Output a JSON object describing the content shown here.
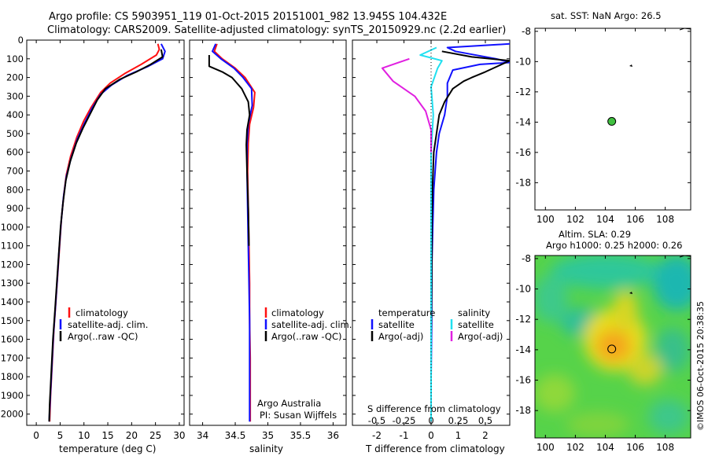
{
  "header": {
    "title_line1": "Argo profile: CS 5903951_119 01-Oct-2015 20151001_982 13.945S 104.432E",
    "title_line2": "Climatology: CARS2009. Satellite-adjusted climatology: synTS_20150929.nc (2.2d earlier)"
  },
  "colors": {
    "climatology": "#ff1010",
    "satellite": "#1010ff",
    "argo": "#000000",
    "satellite_diff": "#20e0f0",
    "argo_adj_diff": "#e020e0",
    "map_dot": "#40c040"
  },
  "chart_data": [
    {
      "type": "line",
      "name": "temperature",
      "xlabel": "temperature (deg C)",
      "ylabel": "",
      "xlim": [
        -2,
        31
      ],
      "ylim": [
        2060,
        0
      ],
      "xticks": [
        "0",
        "5",
        "10",
        "15",
        "20",
        "25",
        "30"
      ],
      "xtick_values": [
        0,
        5,
        10,
        15,
        20,
        25,
        30
      ],
      "yticks": [
        "0",
        "100",
        "200",
        "300",
        "400",
        "500",
        "600",
        "700",
        "800",
        "900",
        "1000",
        "1100",
        "1200",
        "1300",
        "1400",
        "1500",
        "1600",
        "1700",
        "1800",
        "1900",
        "2000"
      ],
      "ytick_values": [
        0,
        100,
        200,
        300,
        400,
        500,
        600,
        700,
        800,
        900,
        1000,
        1100,
        1200,
        1300,
        1400,
        1500,
        1600,
        1700,
        1800,
        1900,
        2000
      ],
      "legend": [
        "climatology",
        "satellite-adj. clim.",
        "Argo(..raw -QC)"
      ],
      "series": [
        {
          "name": "climatology",
          "color": "red",
          "points": [
            [
              25.5,
              20
            ],
            [
              25.8,
              50
            ],
            [
              25.2,
              80
            ],
            [
              22,
              130
            ],
            [
              18.5,
              180
            ],
            [
              15.5,
              230
            ],
            [
              13.5,
              280
            ],
            [
              11.5,
              360
            ],
            [
              10,
              430
            ],
            [
              8.5,
              520
            ],
            [
              7.2,
              620
            ],
            [
              6.3,
              720
            ],
            [
              5.8,
              820
            ],
            [
              5.3,
              950
            ],
            [
              4.9,
              1100
            ],
            [
              4.5,
              1250
            ],
            [
              4.1,
              1400
            ],
            [
              3.7,
              1550
            ],
            [
              3.3,
              1750
            ],
            [
              3,
              1900
            ],
            [
              2.8,
              2040
            ]
          ]
        },
        {
          "name": "satellite-adj. clim.",
          "color": "blue",
          "points": [
            [
              26.2,
              20
            ],
            [
              27,
              60
            ],
            [
              26.5,
              100
            ],
            [
              23.5,
              140
            ],
            [
              19,
              190
            ],
            [
              15.8,
              240
            ],
            [
              13.5,
              290
            ],
            [
              11.8,
              360
            ],
            [
              10.2,
              440
            ],
            [
              8.6,
              530
            ],
            [
              7.3,
              630
            ],
            [
              6.3,
              730
            ],
            [
              5.7,
              840
            ],
            [
              5.2,
              980
            ],
            [
              4.8,
              1120
            ],
            [
              4.4,
              1280
            ],
            [
              4,
              1430
            ],
            [
              3.6,
              1580
            ],
            [
              3.2,
              1780
            ],
            [
              2.9,
              1930
            ],
            [
              2.7,
              2040
            ]
          ]
        },
        {
          "name": "Argo(..raw -QC)",
          "color": "black",
          "points": [
            [
              26.2,
              50
            ],
            [
              26.5,
              90
            ],
            [
              24,
              130
            ],
            [
              21,
              170
            ],
            [
              17.5,
              210
            ],
            [
              14.5,
              260
            ],
            [
              12.8,
              320
            ],
            [
              11.2,
              400
            ],
            [
              9.8,
              470
            ],
            [
              8.4,
              550
            ],
            [
              7.1,
              650
            ],
            [
              6.2,
              750
            ],
            [
              5.6,
              870
            ],
            [
              5.1,
              1000
            ],
            [
              4.7,
              1150
            ],
            [
              4.3,
              1300
            ],
            [
              3.9,
              1450
            ],
            [
              3.5,
              1600
            ],
            [
              3.1,
              1800
            ],
            [
              2.8,
              1950
            ],
            [
              2.7,
              2040
            ]
          ]
        }
      ]
    },
    {
      "type": "line",
      "name": "salinity",
      "xlabel": "salinity",
      "xlim": [
        33.8,
        36.2
      ],
      "ylim": [
        2060,
        0
      ],
      "xticks": [
        "34",
        "34.5",
        "35",
        "35.5",
        "36"
      ],
      "xtick_values": [
        34,
        34.5,
        35,
        35.5,
        36
      ],
      "legend": [
        "climatology",
        "satellite-adj. clim.",
        "Argo(..raw -QC)"
      ],
      "annotation_line1": "Argo Australia",
      "annotation_line2": "PI: Susan Wijffels",
      "series": [
        {
          "name": "climatology",
          "color": "red",
          "points": [
            [
              34.22,
              20
            ],
            [
              34.18,
              60
            ],
            [
              34.3,
              100
            ],
            [
              34.5,
              150
            ],
            [
              34.65,
              200
            ],
            [
              34.8,
              280
            ],
            [
              34.78,
              360
            ],
            [
              34.72,
              450
            ],
            [
              34.7,
              550
            ],
            [
              34.69,
              700
            ],
            [
              34.7,
              900
            ],
            [
              34.71,
              1100
            ],
            [
              34.72,
              1300
            ],
            [
              34.72,
              1500
            ],
            [
              34.73,
              1700
            ],
            [
              34.73,
              2040
            ]
          ]
        },
        {
          "name": "satellite-adj. clim.",
          "color": "blue",
          "points": [
            [
              34.2,
              20
            ],
            [
              34.15,
              60
            ],
            [
              34.28,
              100
            ],
            [
              34.48,
              150
            ],
            [
              34.62,
              200
            ],
            [
              34.75,
              260
            ],
            [
              34.76,
              350
            ],
            [
              34.7,
              450
            ],
            [
              34.68,
              560
            ],
            [
              34.68,
              700
            ],
            [
              34.69,
              900
            ],
            [
              34.7,
              1100
            ],
            [
              34.71,
              1300
            ],
            [
              34.72,
              1500
            ],
            [
              34.72,
              1700
            ],
            [
              34.72,
              2040
            ]
          ]
        },
        {
          "name": "Argo(..raw -QC)",
          "color": "black",
          "points": [
            [
              34.1,
              80
            ],
            [
              34.1,
              140
            ],
            [
              34.3,
              170
            ],
            [
              34.45,
              200
            ],
            [
              34.6,
              260
            ],
            [
              34.7,
              330
            ],
            [
              34.72,
              400
            ],
            [
              34.68,
              480
            ],
            [
              34.67,
              560
            ],
            [
              34.68,
              700
            ],
            [
              34.7,
              900
            ],
            [
              34.71,
              1100
            ]
          ]
        }
      ]
    },
    {
      "type": "line",
      "name": "difference",
      "xlabel": "T difference from climatology",
      "top_label": "S difference from climatology",
      "xlim": [
        -2.9,
        2.9
      ],
      "ylim": [
        2060,
        0
      ],
      "xticks": [
        "-2",
        "-1",
        "0",
        "1",
        "2"
      ],
      "xtick_values": [
        -2,
        -1,
        0,
        1,
        2
      ],
      "sticks": [
        "-0.5",
        "-0.25",
        "0",
        "0.25",
        "0.5"
      ],
      "stick_values": [
        -0.5,
        -0.25,
        0,
        0.25,
        0.5
      ],
      "legend_temperature_title": "temperature",
      "legend_salinity_title": "salinity",
      "legend_temperature": [
        "satellite",
        "Argo(-adj)"
      ],
      "legend_salinity": [
        "satellite",
        "Argo(-adj)"
      ],
      "series": [
        {
          "name": "T satellite",
          "color": "blue",
          "points": [
            [
              2.9,
              20
            ],
            [
              0.6,
              40
            ],
            [
              0.9,
              60
            ],
            [
              2.4,
              100
            ],
            [
              2.9,
              120
            ],
            [
              1.8,
              130
            ],
            [
              0.8,
              160
            ],
            [
              0.6,
              230
            ],
            [
              0.6,
              300
            ],
            [
              0.5,
              400
            ],
            [
              0.3,
              500
            ],
            [
              0.2,
              600
            ],
            [
              0.1,
              800
            ],
            [
              0.06,
              1000
            ],
            [
              0.03,
              1200
            ],
            [
              0.02,
              1500
            ],
            [
              0,
              1800
            ],
            [
              0,
              2040
            ]
          ]
        },
        {
          "name": "T Argo(-adj)",
          "color": "black",
          "points": [
            [
              0.4,
              60
            ],
            [
              1.5,
              90
            ],
            [
              2.9,
              110
            ],
            [
              2.0,
              170
            ],
            [
              1.5,
              200
            ],
            [
              1.2,
              220
            ],
            [
              0.8,
              260
            ],
            [
              0.5,
              330
            ],
            [
              0.3,
              400
            ],
            [
              0.2,
              500
            ],
            [
              0.1,
              600
            ],
            [
              0.05,
              800
            ],
            [
              0.03,
              1000
            ],
            [
              0.02,
              1300
            ],
            [
              0,
              1600
            ],
            [
              0,
              2040
            ]
          ]
        },
        {
          "name": "S satellite",
          "color": "cyan",
          "points": [
            [
              0.05,
              40
            ],
            [
              -0.1,
              80
            ],
            [
              0.1,
              110
            ],
            [
              0.06,
              150
            ],
            [
              0,
              250
            ],
            [
              0.02,
              400
            ],
            [
              0,
              600
            ],
            [
              0,
              900
            ],
            [
              0,
              1200
            ],
            [
              0,
              1600
            ],
            [
              0,
              2040
            ]
          ]
        },
        {
          "name": "S Argo(-adj)",
          "color": "magenta",
          "points": [
            [
              -0.2,
              100
            ],
            [
              -0.45,
              150
            ],
            [
              -0.35,
              220
            ],
            [
              -0.15,
              300
            ],
            [
              -0.05,
              380
            ],
            [
              0,
              480
            ],
            [
              0,
              600
            ]
          ]
        }
      ]
    },
    {
      "type": "scatter",
      "name": "sst_map",
      "title": "sat. SST: NaN Argo: 26.5",
      "xlim": [
        99.3,
        109.7
      ],
      "ylim": [
        -19.8,
        -7.8
      ],
      "xticks": [
        "100",
        "102",
        "104",
        "106",
        "108"
      ],
      "xtick_values": [
        100,
        102,
        104,
        106,
        108
      ],
      "yticks": [
        "-8",
        "-10",
        "-12",
        "-14",
        "-16",
        "-18"
      ],
      "ytick_values": [
        -8,
        -10,
        -12,
        -14,
        -16,
        -18
      ],
      "points": [
        [
          104.43,
          -13.95
        ]
      ]
    },
    {
      "type": "heatmap",
      "name": "sla_map",
      "title_line1": "Altim. SLA: 0.29",
      "title_line2": "Argo h1000: 0.25 h2000: 0.26",
      "xlim": [
        99.3,
        109.7
      ],
      "ylim": [
        -19.8,
        -7.8
      ],
      "xticks": [
        "100",
        "102",
        "104",
        "106",
        "108"
      ],
      "xtick_values": [
        100,
        102,
        104,
        106,
        108
      ],
      "yticks": [
        "-8",
        "-10",
        "-12",
        "-14",
        "-16",
        "-18"
      ],
      "ytick_values": [
        -8,
        -10,
        -12,
        -14,
        -16,
        -18
      ],
      "points": [
        [
          104.43,
          -13.95
        ]
      ]
    }
  ],
  "footer": {
    "credit": "©IMOS 06-Oct-2015 20:38:35"
  }
}
